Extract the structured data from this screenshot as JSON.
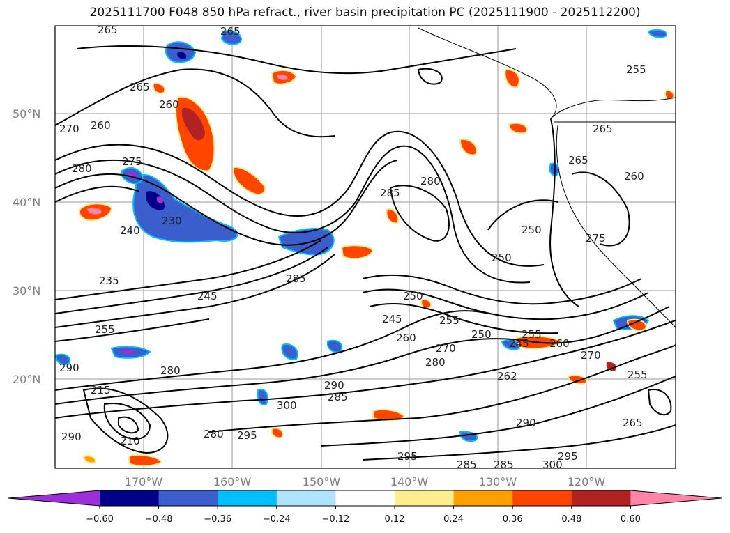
{
  "title": "2025111700 F048 850 hPa refract., river basin precipitation PC (2025111900 - 2025112200)",
  "map": {
    "lat_labels": [
      "50°N",
      "40°N",
      "30°N",
      "20°N"
    ],
    "lon_labels": [
      "170°W",
      "160°W",
      "150°W",
      "140°W",
      "130°W",
      "120°W"
    ],
    "contour_labels": [
      "265",
      "265",
      "270",
      "275",
      "280",
      "260",
      "265",
      "260",
      "240",
      "235",
      "230",
      "245",
      "255",
      "285",
      "280",
      "285",
      "250",
      "250",
      "245",
      "250",
      "255",
      "260",
      "270",
      "280",
      "250",
      "255",
      "245",
      "262",
      "270",
      "260",
      "265",
      "255",
      "290",
      "285",
      "300",
      "295",
      "280",
      "295",
      "290",
      "285",
      "285",
      "300",
      "295",
      "290",
      "265",
      "255",
      "275",
      "280",
      "215",
      "210",
      "290",
      "265",
      "260"
    ]
  },
  "colorbar": {
    "ticks": [
      "−0.60",
      "−0.48",
      "−0.36",
      "−0.24",
      "−0.12",
      "0.12",
      "0.24",
      "0.36",
      "0.48",
      "0.60"
    ],
    "colors": [
      "#9b30d9",
      "#00008b",
      "#3a5fcd",
      "#00bfff",
      "#ade3fb",
      "#ffffff",
      "#ffec8b",
      "#ff9f00",
      "#ff4500",
      "#b22222",
      "#ff85a8"
    ]
  }
}
